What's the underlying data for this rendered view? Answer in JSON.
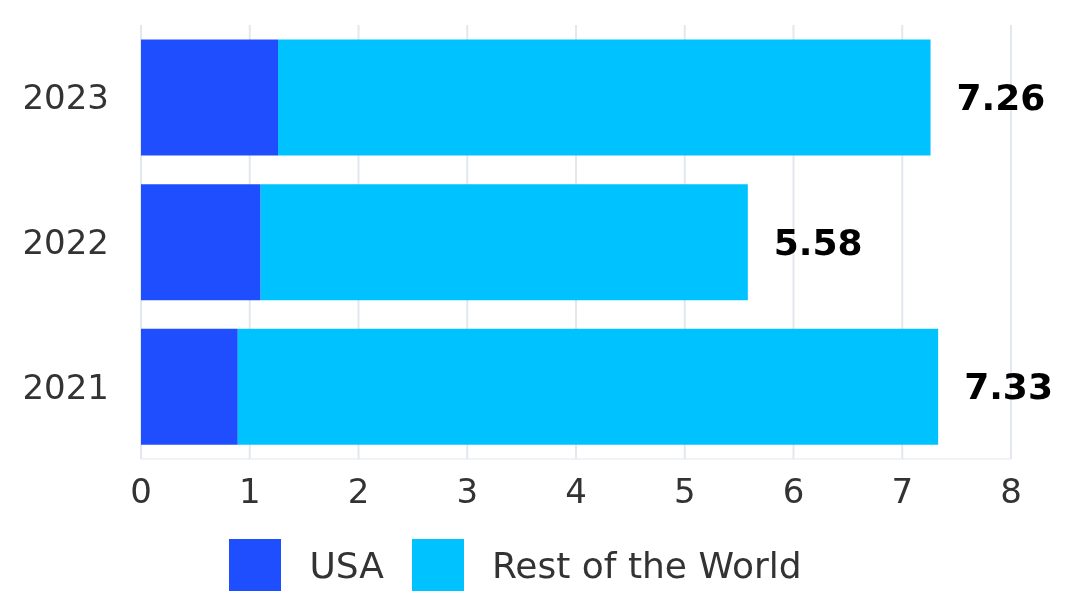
{
  "chart_data": {
    "type": "bar",
    "orientation": "horizontal",
    "stacked": true,
    "categories": [
      "2023",
      "2022",
      "2021"
    ],
    "series": [
      {
        "name": "USA",
        "color": "#1f4eff",
        "values": [
          1.26,
          1.1,
          0.89
        ]
      },
      {
        "name": "Rest of the World",
        "color": "#00c2ff",
        "values": [
          6.0,
          4.48,
          6.44
        ]
      }
    ],
    "totals": [
      "7.26",
      "5.58",
      "7.33"
    ],
    "xlim": [
      0,
      8
    ],
    "xticks": [
      0,
      1,
      2,
      3,
      4,
      5,
      6,
      7,
      8
    ],
    "grid": "x",
    "legend": "bottom"
  }
}
